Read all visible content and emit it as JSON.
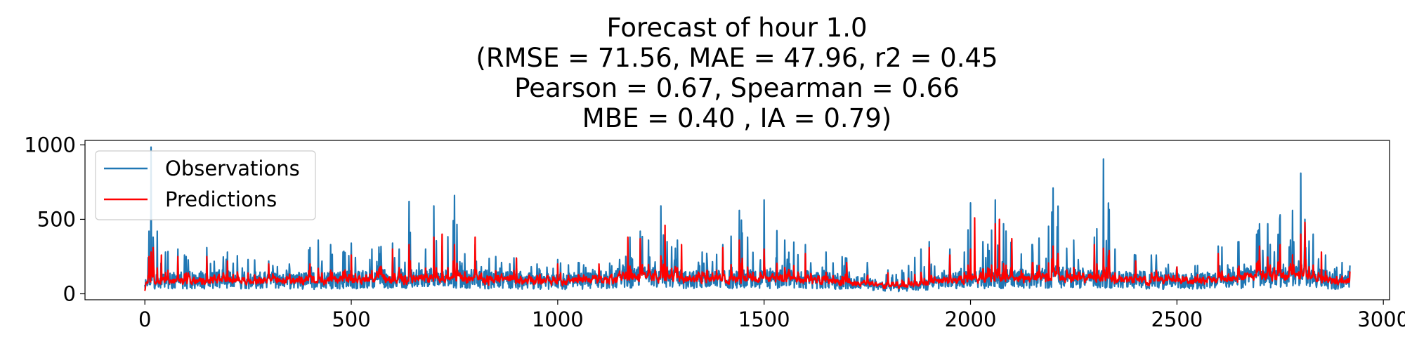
{
  "chart_data": {
    "type": "line",
    "title_lines": [
      "Forecast of hour 1.0",
      "(RMSE = 71.56, MAE = 47.96, r2 = 0.45",
      "Pearson = 0.67, Spearman = 0.66",
      "MBE = 0.40 , IA = 0.79)"
    ],
    "xlabel": "",
    "ylabel": "",
    "xlim": [
      -145,
      3015
    ],
    "ylim": [
      -40,
      1030
    ],
    "x_ticks": [
      0,
      500,
      1000,
      1500,
      2000,
      2500,
      3000
    ],
    "x_tick_labels": [
      "0",
      "500",
      "1000",
      "1500",
      "2000",
      "2500",
      "3000"
    ],
    "y_ticks": [
      0,
      500,
      1000
    ],
    "y_tick_labels": [
      "0",
      "500",
      "1000"
    ],
    "grid": false,
    "legend_position": "top-left",
    "n_points": 2920,
    "series": [
      {
        "name": "Observations",
        "color": "#1f77b4",
        "kind": "observed",
        "envelope": {
          "x": [
            0,
            10,
            15,
            20,
            30,
            50,
            80,
            100,
            150,
            200,
            250,
            300,
            350,
            400,
            420,
            450,
            480,
            500,
            550,
            600,
            640,
            680,
            700,
            720,
            750,
            800,
            850,
            900,
            950,
            1000,
            1050,
            1100,
            1150,
            1175,
            1200,
            1220,
            1250,
            1265,
            1290,
            1350,
            1400,
            1440,
            1460,
            1500,
            1550,
            1600,
            1650,
            1700,
            1750,
            1800,
            1820,
            1850,
            1880,
            1900,
            1950,
            1985,
            2000,
            2030,
            2060,
            2080,
            2100,
            2150,
            2200,
            2250,
            2300,
            2322,
            2350,
            2400,
            2450,
            2500,
            2550,
            2600,
            2650,
            2700,
            2720,
            2750,
            2780,
            2800,
            2810,
            2830,
            2860,
            2900,
            2920
          ],
          "y": [
            150,
            420,
            985,
            380,
            420,
            280,
            300,
            250,
            310,
            280,
            230,
            220,
            200,
            310,
            360,
            330,
            280,
            340,
            300,
            340,
            620,
            300,
            590,
            320,
            660,
            330,
            250,
            240,
            200,
            230,
            210,
            180,
            230,
            380,
            420,
            360,
            590,
            350,
            360,
            280,
            330,
            560,
            380,
            630,
            360,
            330,
            280,
            240,
            210,
            160,
            130,
            190,
            300,
            350,
            300,
            280,
            610,
            350,
            630,
            470,
            360,
            330,
            710,
            360,
            380,
            905,
            300,
            260,
            260,
            180,
            190,
            320,
            350,
            470,
            470,
            530,
            560,
            810,
            500,
            400,
            260,
            210,
            190
          ]
        },
        "base": {
          "x": [
            0,
            100,
            200,
            400,
            500,
            600,
            800,
            900,
            1000,
            1200,
            1400,
            1500,
            1600,
            1700,
            1800,
            1830,
            1900,
            2000,
            2100,
            2200,
            2300,
            2500,
            2600,
            2700,
            2800,
            2900,
            2920
          ],
          "y": [
            80,
            90,
            95,
            85,
            95,
            100,
            100,
            90,
            80,
            110,
            95,
            100,
            95,
            80,
            50,
            40,
            70,
            100,
            100,
            110,
            105,
            85,
            90,
            110,
            120,
            80,
            70
          ]
        },
        "max_value": 985
      },
      {
        "name": "Predictions",
        "color": "#ff0000",
        "kind": "predicted",
        "envelope": {
          "x": [
            0,
            10,
            20,
            40,
            80,
            150,
            200,
            300,
            400,
            500,
            600,
            640,
            700,
            720,
            750,
            800,
            900,
            1000,
            1100,
            1170,
            1200,
            1260,
            1300,
            1400,
            1440,
            1500,
            1600,
            1700,
            1800,
            1850,
            1900,
            1950,
            2000,
            2010,
            2060,
            2070,
            2100,
            2200,
            2300,
            2400,
            2500,
            2600,
            2700,
            2750,
            2800,
            2810,
            2850,
            2920
          ],
          "y": [
            20,
            250,
            310,
            260,
            250,
            250,
            220,
            200,
            200,
            260,
            300,
            330,
            380,
            400,
            330,
            380,
            240,
            200,
            200,
            380,
            370,
            460,
            330,
            310,
            360,
            300,
            270,
            210,
            140,
            110,
            310,
            260,
            300,
            510,
            470,
            500,
            370,
            320,
            330,
            220,
            180,
            270,
            320,
            330,
            400,
            480,
            280,
            150
          ]
        },
        "base": {
          "x": [
            0,
            100,
            200,
            400,
            500,
            600,
            800,
            1000,
            1200,
            1400,
            1600,
            1800,
            1830,
            1900,
            2000,
            2200,
            2400,
            2600,
            2800,
            2920
          ],
          "y": [
            70,
            80,
            85,
            80,
            90,
            95,
            95,
            80,
            100,
            95,
            90,
            60,
            55,
            80,
            100,
            100,
            90,
            90,
            110,
            70
          ]
        },
        "max_value": 510
      }
    ]
  }
}
